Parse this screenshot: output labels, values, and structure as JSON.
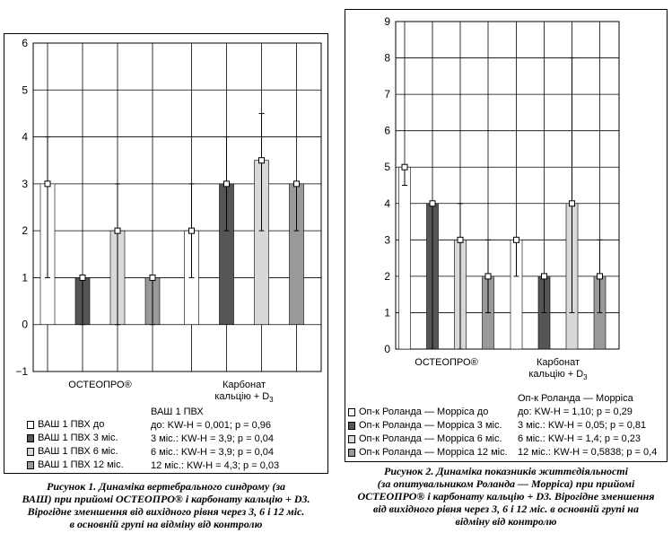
{
  "colors": {
    "before": "#ffffff",
    "m3": "#555555",
    "m6": "#d8d8d8",
    "m12": "#999999"
  },
  "chart_data": [
    {
      "type": "bar",
      "categories": [
        "ОСТЕОПРО®",
        "Карбонат кальцію + D3"
      ],
      "series": [
        {
          "name": "ВАШ 1 ПВХ до",
          "values": [
            3,
            2
          ],
          "err_low": [
            1,
            1
          ],
          "err_high": [
            4,
            3
          ]
        },
        {
          "name": "ВАШ 1 ПВХ 3 міс.",
          "values": [
            1,
            3
          ],
          "err_low": [
            0,
            2
          ],
          "err_high": [
            1,
            4
          ]
        },
        {
          "name": "ВАШ 1 ПВХ 6 міс.",
          "values": [
            2,
            3.5
          ],
          "err_low": [
            0,
            2
          ],
          "err_high": [
            3,
            4.5
          ]
        },
        {
          "name": "ВАШ 1 ПВХ 12 міс.",
          "values": [
            1,
            3
          ],
          "err_low": [
            0,
            2
          ],
          "err_high": [
            1,
            3
          ]
        }
      ],
      "ylim": [
        -1,
        6
      ],
      "yticks": [
        -1,
        0,
        1,
        2,
        3,
        4,
        5,
        6
      ],
      "grid": true,
      "legend_position": "bottom-left",
      "stats_title": "ВАШ 1 ПВХ",
      "stats": [
        "до: KW-H = 0,001; p = 0,96",
        "3 міс.: KW-H = 3,9; p = 0,04",
        "6 міс.: KW-H = 3,9; p = 0,04",
        "12 міс.: KW-H = 4,3; p = 0,03"
      ],
      "caption": [
        "Рисунок 1. Динаміка вертебрального синдрому (за",
        "ВАШ) при прийомі ОСТЕОПРО® і карбонату кальцію + D3.",
        "Вірогідне зменшення від вихідного рівня через 3, 6 і 12 міс.",
        "в основній групі на відміну від контролю"
      ]
    },
    {
      "type": "bar",
      "categories": [
        "ОСТЕОПРО®",
        "Карбонат кальцію + D3"
      ],
      "series": [
        {
          "name": "Оп-к Роланда — Морріса до",
          "values": [
            5,
            3
          ],
          "err_low": [
            4.5,
            2
          ],
          "err_high": [
            5,
            3
          ]
        },
        {
          "name": "Оп-к Роланда — Морріса 3 міс.",
          "values": [
            4,
            2
          ],
          "err_low": [
            0,
            1
          ],
          "err_high": [
            4,
            2
          ]
        },
        {
          "name": "Оп-к Роланда — Морріса 6 міс.",
          "values": [
            3,
            4
          ],
          "err_low": [
            0,
            1
          ],
          "err_high": [
            4,
            8
          ]
        },
        {
          "name": "Оп-к Роланда — Морріса 12 міс.",
          "values": [
            2,
            2
          ],
          "err_low": [
            1,
            1
          ],
          "err_high": [
            3,
            3
          ]
        }
      ],
      "ylim": [
        0,
        9
      ],
      "yticks": [
        0,
        1,
        2,
        3,
        4,
        5,
        6,
        7,
        8,
        9
      ],
      "grid": true,
      "legend_position": "bottom-left",
      "stats_title": "Оп-к Роланда — Морріса",
      "stats": [
        "до: KW-H = 1,10; p = 0,29",
        "3 міс.: KW-H = 0,05; p = 0,81",
        "6 міс.: KW-H = 1,4; p = 0,23",
        "12 міс.: KW-H = 0,5838; p = 0,4"
      ],
      "caption": [
        "Рисунок 2. Динаміка показників життєдіяльності",
        "(за опитувальником Роланда — Морріса) при прийомі",
        "ОСТЕОПРО® і карбонату кальцію + D3. Вірогідне зменшення",
        "від вихідного рівня через 3, 6 і 12 міс. в основній групі на",
        "відміну від контролю"
      ]
    }
  ]
}
